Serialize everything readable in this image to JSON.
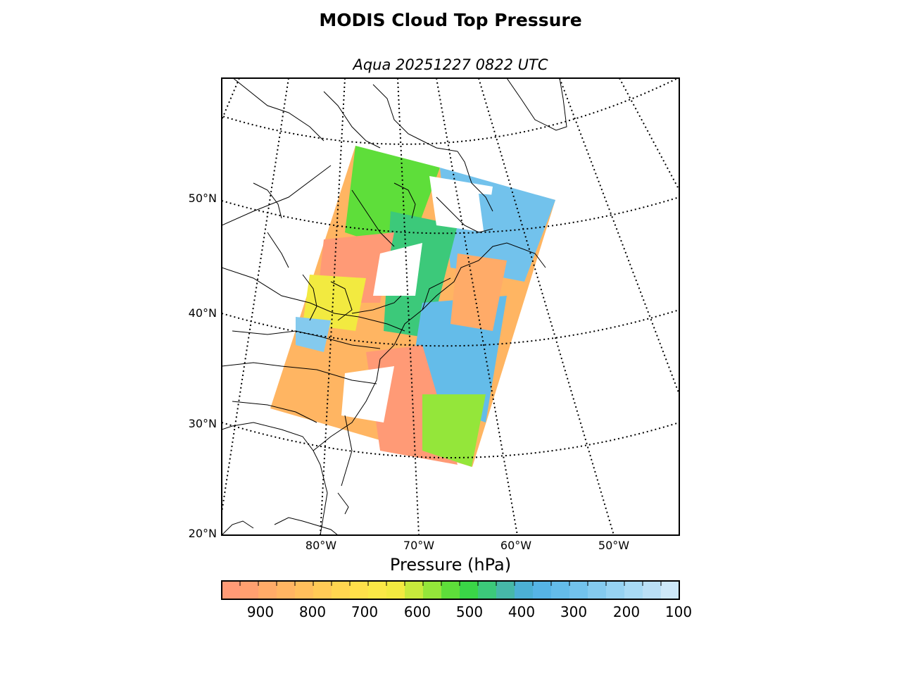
{
  "title": "MODIS Cloud Top Pressure",
  "subtitle": "Aqua 20251227 0822 UTC",
  "lat_labels": [
    "50°N",
    "40°N",
    "30°N",
    "20°N"
  ],
  "lon_labels": [
    "80°W",
    "70°W",
    "60°W",
    "50°W"
  ],
  "colorbar": {
    "label": "Pressure (hPa)",
    "ticks": [
      "900",
      "800",
      "700",
      "600",
      "500",
      "400",
      "300",
      "200",
      "100"
    ],
    "colors": [
      "#ff9a76",
      "#ffa070",
      "#ffab68",
      "#ffb562",
      "#ffbf5c",
      "#ffca56",
      "#ffd550",
      "#ffe04a",
      "#fbe846",
      "#f2ea40",
      "#c7ea3c",
      "#94e63a",
      "#5ede3a",
      "#3ad647",
      "#3cc97a",
      "#46b8a8",
      "#4cb0d5",
      "#56b4e6",
      "#64bce9",
      "#72c2ec",
      "#84caee",
      "#96d2f1",
      "#a8daf4",
      "#badff5",
      "#cde8f8"
    ]
  }
}
